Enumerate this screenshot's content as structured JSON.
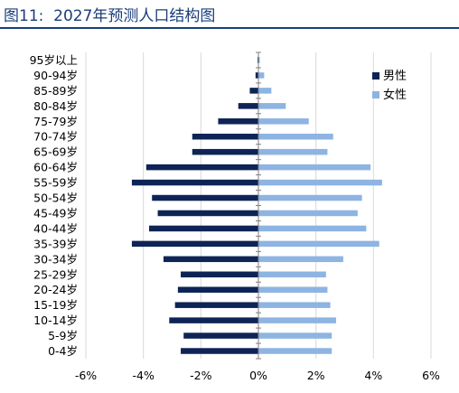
{
  "chart_data": {
    "type": "bar",
    "orientation": "horizontal",
    "layout": "population-pyramid",
    "title": "图11:  2027年预测人口结构图",
    "categories": [
      "0-4岁",
      "5-9岁",
      "10-14岁",
      "15-19岁",
      "20-24岁",
      "25-29岁",
      "30-34岁",
      "35-39岁",
      "40-44岁",
      "45-49岁",
      "50-54岁",
      "55-59岁",
      "60-64岁",
      "65-69岁",
      "70-74岁",
      "75-79岁",
      "80-84岁",
      "85-89岁",
      "90-94岁",
      "95岁以上"
    ],
    "series": [
      {
        "name": "男性",
        "color": "#0f2456",
        "values": [
          -2.7,
          -2.6,
          -3.1,
          -2.9,
          -2.8,
          -2.7,
          -3.3,
          -4.4,
          -3.8,
          -3.5,
          -3.7,
          -4.4,
          -3.9,
          -2.3,
          -2.3,
          -1.4,
          -0.7,
          -0.3,
          -0.1,
          -0.03
        ]
      },
      {
        "name": "女性",
        "color": "#8db4e2",
        "values": [
          2.55,
          2.55,
          2.7,
          2.5,
          2.4,
          2.35,
          2.95,
          4.2,
          3.75,
          3.45,
          3.6,
          4.3,
          3.9,
          2.4,
          2.6,
          1.75,
          0.95,
          0.45,
          0.2,
          0.05
        ]
      }
    ],
    "xlim": [
      -6,
      6
    ],
    "xticks": [
      -6,
      -4,
      -2,
      0,
      2,
      4,
      6
    ],
    "xtick_labels": [
      "-6%",
      "-4%",
      "-2%",
      "0%",
      "2%",
      "4%",
      "6%"
    ],
    "grid": "vertical",
    "legend_position": "top-right"
  }
}
